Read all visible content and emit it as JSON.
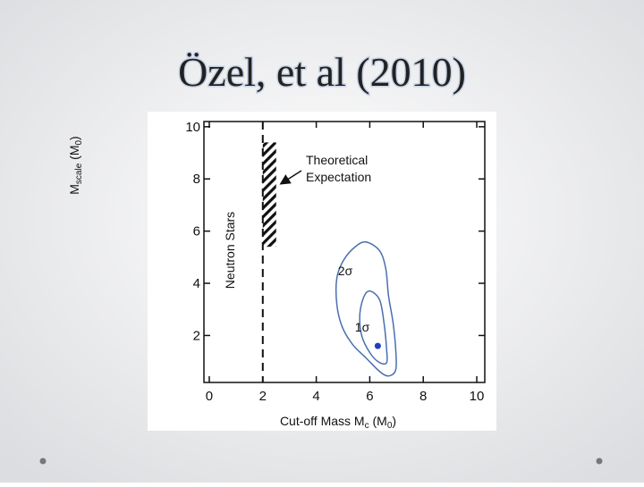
{
  "slide_title": "Özel, et al (2010)",
  "chart_data": {
    "type": "contour",
    "x_label": [
      "Cut-off Mass M",
      "c",
      " (M",
      "0",
      ")"
    ],
    "y_label": [
      "M",
      "scale",
      " (M",
      "0",
      ")"
    ],
    "xlim": [
      -0.2,
      10.3
    ],
    "ylim": [
      0.2,
      10.2
    ],
    "xticks": [
      0,
      2,
      4,
      6,
      8,
      10
    ],
    "yticks": [
      2,
      4,
      6,
      8,
      10
    ],
    "series": [
      {
        "name": "2σ",
        "color": "#4a6fb0",
        "x": [
          5.87,
          6.37,
          6.6,
          6.7,
          6.87,
          6.97,
          6.97,
          6.7,
          6.37,
          5.87,
          5.37,
          4.97,
          4.77,
          4.77,
          5.03,
          5.47
        ],
        "y": [
          5.58,
          5.24,
          4.55,
          3.53,
          2.5,
          1.47,
          0.68,
          0.45,
          0.62,
          1.13,
          1.64,
          2.33,
          3.18,
          4.21,
          4.9,
          5.41
        ]
      },
      {
        "name": "1σ",
        "color": "#4a6fb0",
        "x": [
          6.03,
          6.37,
          6.53,
          6.63,
          6.63,
          6.37,
          6.03,
          5.7,
          5.63,
          5.8
        ],
        "y": [
          3.7,
          3.36,
          2.5,
          1.47,
          0.96,
          0.96,
          1.3,
          1.99,
          2.84,
          3.53
        ]
      }
    ],
    "best_fit": {
      "x": 6.3,
      "y": 1.6,
      "color": "#1f3fbf"
    },
    "neutron_stars": {
      "label": "Neutron Stars",
      "x": 2
    },
    "theory": {
      "label": [
        "Theoretical",
        "Expectation"
      ],
      "x": [
        2,
        2.5
      ],
      "y": [
        5.4,
        9.4
      ]
    }
  }
}
